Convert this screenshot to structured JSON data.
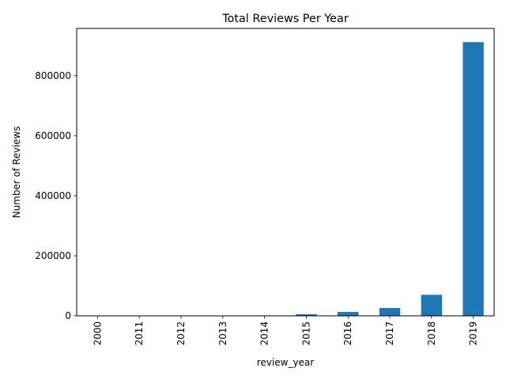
{
  "chart_data": {
    "type": "bar",
    "title": "Total Reviews Per Year",
    "xlabel": "review_year",
    "ylabel": "Number of Reviews",
    "categories": [
      "2000",
      "2011",
      "2012",
      "2013",
      "2014",
      "2015",
      "2016",
      "2017",
      "2018",
      "2019"
    ],
    "values": [
      100,
      300,
      600,
      900,
      1500,
      5500,
      13000,
      26000,
      70000,
      912000
    ],
    "ylim": [
      0,
      957600
    ],
    "yticks": [
      0,
      200000,
      400000,
      600000,
      800000
    ],
    "ytick_labels": [
      "0",
      "200000",
      "400000",
      "600000",
      "800000"
    ],
    "bar_color": "#1f77b4",
    "grid": false,
    "legend": "none"
  }
}
